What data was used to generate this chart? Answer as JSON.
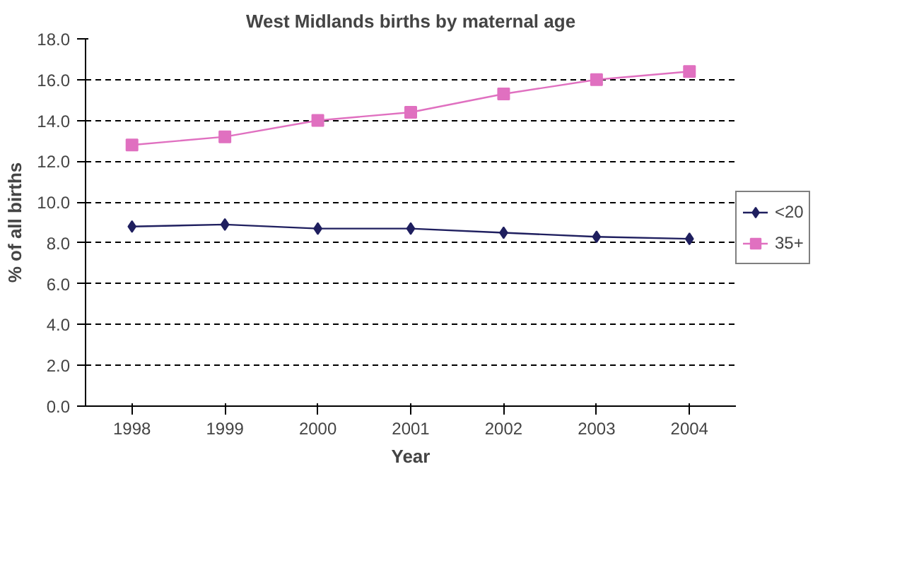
{
  "chart_data": {
    "type": "line",
    "title": "West Midlands births by maternal age",
    "xlabel": "Year",
    "ylabel": "% of all births",
    "categories": [
      "1998",
      "1999",
      "2000",
      "2001",
      "2002",
      "2003",
      "2004"
    ],
    "series": [
      {
        "name": "<20",
        "color": "#1f1f5f",
        "marker": "diamond",
        "values": [
          8.8,
          8.9,
          8.7,
          8.7,
          8.5,
          8.3,
          8.2
        ]
      },
      {
        "name": "35+",
        "color": "#e070c0",
        "marker": "square",
        "values": [
          12.8,
          13.2,
          14.0,
          14.4,
          15.3,
          16.0,
          16.4
        ]
      }
    ],
    "ylim": [
      0,
      18
    ],
    "yticks": [
      {
        "value": 0,
        "label": "0.0"
      },
      {
        "value": 2,
        "label": "2.0"
      },
      {
        "value": 4,
        "label": "4.0"
      },
      {
        "value": 6,
        "label": "6.0"
      },
      {
        "value": 8,
        "label": "8.0"
      },
      {
        "value": 10,
        "label": "10.0"
      },
      {
        "value": 12,
        "label": "12.0"
      },
      {
        "value": 14,
        "label": "14.0"
      },
      {
        "value": 16,
        "label": "16.0"
      },
      {
        "value": 18,
        "label": "18.0"
      }
    ],
    "grid": "y",
    "legend": "right",
    "line_style": "solid"
  }
}
